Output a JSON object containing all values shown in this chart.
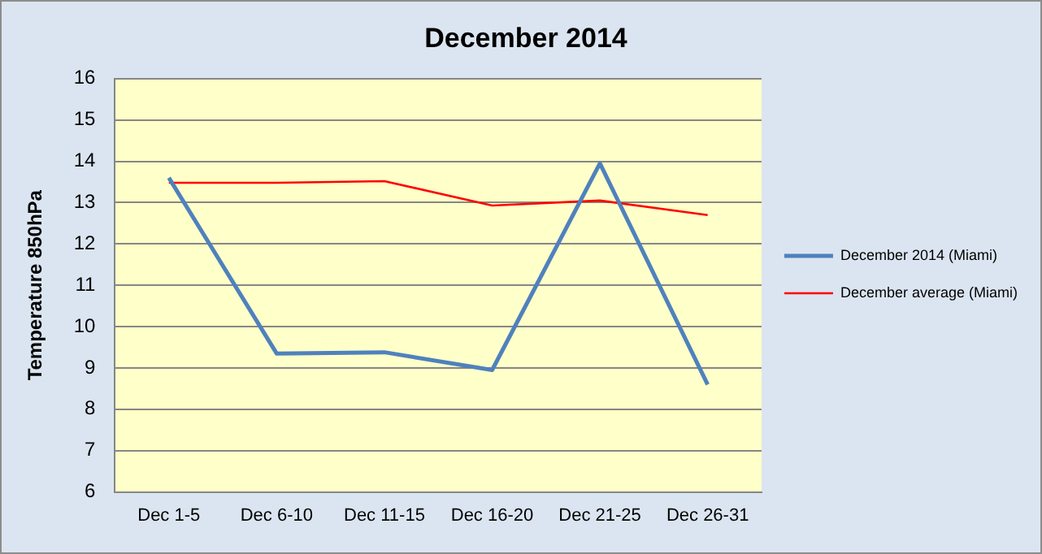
{
  "chart_data": {
    "type": "line",
    "title": "December 2014",
    "ylabel": "Temperature 850hPa",
    "categories": [
      "Dec 1-5",
      "Dec 6-10",
      "Dec 11-15",
      "Dec 16-20",
      "Dec 21-25",
      "Dec 26-31"
    ],
    "series": [
      {
        "name": "December 2014 (Miami)",
        "color": "#4f81bd",
        "values": [
          13.6,
          9.35,
          9.38,
          8.95,
          13.95,
          8.6
        ]
      },
      {
        "name": "December average (Miami)",
        "color": "#ff0000",
        "values": [
          13.48,
          13.48,
          13.52,
          12.93,
          13.05,
          12.7
        ]
      }
    ],
    "ylim": [
      6,
      16
    ],
    "yticks": [
      6,
      7,
      8,
      9,
      10,
      11,
      12,
      13,
      14,
      15,
      16
    ],
    "grid": "y",
    "legend": "right",
    "marker": "none",
    "line_style": "solid"
  }
}
